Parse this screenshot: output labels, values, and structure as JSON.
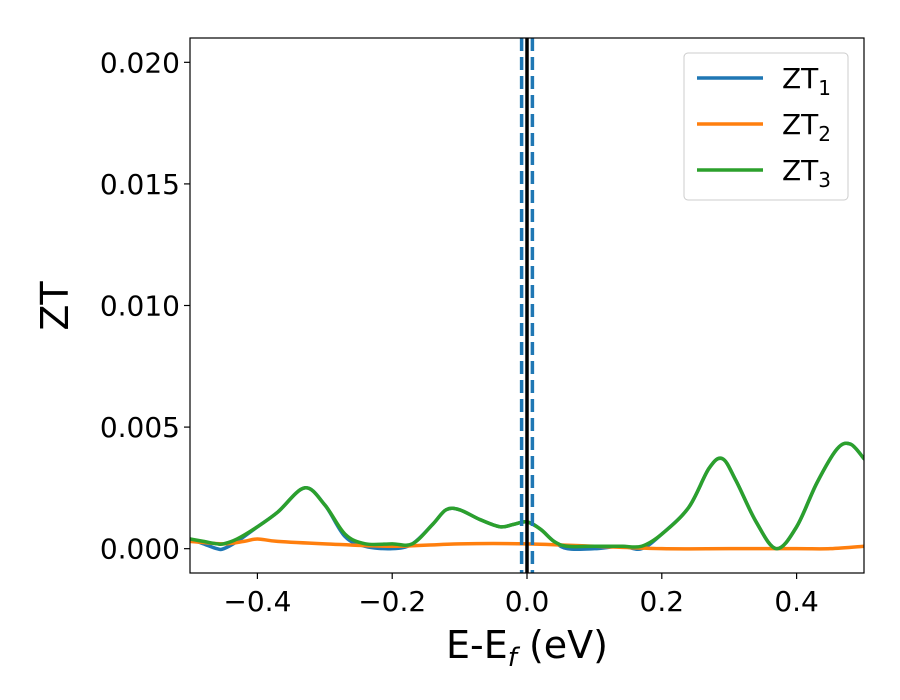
{
  "chart_data": {
    "type": "line",
    "xlabel": {
      "main": "E-E",
      "sub": "f",
      "suffix": " (eV)"
    },
    "ylabel": "ZT",
    "xlim": [
      -0.5,
      0.5
    ],
    "ylim": [
      -0.001,
      0.021
    ],
    "x_ticks": [
      -0.4,
      -0.2,
      0.0,
      0.2,
      0.4
    ],
    "x_tick_labels": [
      "−0.4",
      "−0.2",
      "0.0",
      "0.2",
      "0.4"
    ],
    "y_ticks": [
      0.0,
      0.005,
      0.01,
      0.015,
      0.02
    ],
    "y_tick_labels": [
      "0.000",
      "0.005",
      "0.010",
      "0.015",
      "0.020"
    ],
    "grid": false,
    "legend_position": "top-right",
    "reference_lines": [
      {
        "x": 0.0,
        "style": "solid",
        "color": "#000000"
      },
      {
        "x": -0.008,
        "style": "dashed",
        "color": "#1f77b4"
      },
      {
        "x": 0.008,
        "style": "dashed",
        "color": "#1f77b4"
      }
    ],
    "series": [
      {
        "name": "ZT",
        "sub": "1",
        "color": "#1f77b4",
        "x": [
          -0.5,
          -0.48,
          -0.46,
          -0.45,
          -0.43,
          -0.4,
          -0.37,
          -0.33,
          -0.3,
          -0.27,
          -0.24,
          -0.2,
          -0.17,
          -0.14,
          -0.12,
          -0.1,
          -0.07,
          -0.04,
          -0.02,
          0.0,
          0.02,
          0.04,
          0.06,
          0.1,
          0.14,
          0.17,
          0.2,
          0.24,
          0.27,
          0.29,
          0.31,
          0.34,
          0.37,
          0.4,
          0.43,
          0.46,
          0.48,
          0.5
        ],
        "y": [
          0.0004,
          0.0002,
          0.0,
          0.0,
          0.0003,
          0.0009,
          0.0015,
          0.0025,
          0.0018,
          0.0005,
          0.0001,
          0.0,
          0.0002,
          0.001,
          0.0016,
          0.0016,
          0.0012,
          0.0009,
          0.001,
          0.0011,
          0.0008,
          0.0003,
          0.0,
          0.0,
          0.0001,
          0.0,
          0.0006,
          0.0017,
          0.0033,
          0.0037,
          0.0028,
          0.0011,
          0.0,
          0.0009,
          0.0027,
          0.0041,
          0.0043,
          0.0037
        ]
      },
      {
        "name": "ZT",
        "sub": "2",
        "color": "#ff7f0e",
        "x": [
          -0.5,
          -0.45,
          -0.42,
          -0.4,
          -0.37,
          -0.3,
          -0.2,
          -0.1,
          0.0,
          0.1,
          0.2,
          0.3,
          0.4,
          0.45,
          0.5
        ],
        "y": [
          0.0003,
          0.0002,
          0.0003,
          0.0004,
          0.0003,
          0.0002,
          0.0001,
          0.0002,
          0.0002,
          0.0001,
          0.0,
          0.0,
          0.0,
          0.0,
          0.0001
        ]
      },
      {
        "name": "ZT",
        "sub": "3",
        "color": "#2ca02c",
        "x": [
          -0.5,
          -0.48,
          -0.46,
          -0.45,
          -0.43,
          -0.4,
          -0.37,
          -0.33,
          -0.3,
          -0.27,
          -0.24,
          -0.2,
          -0.17,
          -0.14,
          -0.12,
          -0.1,
          -0.07,
          -0.04,
          -0.02,
          0.0,
          0.02,
          0.04,
          0.06,
          0.1,
          0.14,
          0.17,
          0.2,
          0.24,
          0.27,
          0.29,
          0.31,
          0.34,
          0.37,
          0.4,
          0.43,
          0.46,
          0.48,
          0.5
        ],
        "y": [
          0.0004,
          0.0003,
          0.0002,
          0.0002,
          0.0004,
          0.0009,
          0.0015,
          0.0025,
          0.0018,
          0.0006,
          0.0002,
          0.0002,
          0.0002,
          0.001,
          0.0016,
          0.0016,
          0.0012,
          0.0009,
          0.001,
          0.0011,
          0.0008,
          0.0003,
          0.0001,
          0.0001,
          0.0001,
          0.0001,
          0.0006,
          0.0017,
          0.0033,
          0.0037,
          0.0028,
          0.0011,
          0.0,
          0.0009,
          0.0027,
          0.0041,
          0.0043,
          0.0037
        ]
      }
    ]
  }
}
